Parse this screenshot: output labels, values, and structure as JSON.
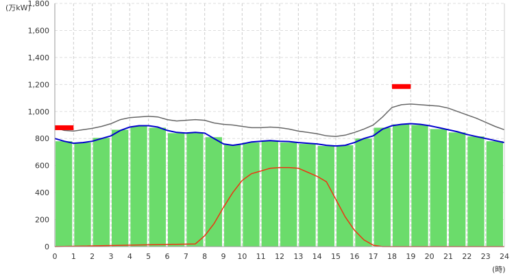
{
  "chart_data": {
    "type": "bar",
    "title": "",
    "ylabel": "(万kW)",
    "xlabel": "(時)",
    "ylim": [
      0,
      1800
    ],
    "xlim": [
      0,
      24
    ],
    "y_ticks": [
      "0",
      "200",
      "400",
      "600",
      "800",
      "1,000",
      "1,200",
      "1,400",
      "1,600",
      "1,800"
    ],
    "x_ticks": [
      "0",
      "1",
      "2",
      "3",
      "4",
      "5",
      "6",
      "7",
      "8",
      "9",
      "10",
      "11",
      "12",
      "13",
      "14",
      "15",
      "16",
      "17",
      "18",
      "19",
      "20",
      "21",
      "22",
      "23",
      "24"
    ],
    "grid": true,
    "categories": [
      0,
      1,
      2,
      3,
      4,
      5,
      6,
      7,
      8,
      9,
      10,
      11,
      12,
      13,
      14,
      15,
      16,
      17,
      18,
      19,
      20,
      21,
      22,
      23
    ],
    "bars": [
      780,
      770,
      805,
      865,
      890,
      880,
      840,
      840,
      810,
      755,
      770,
      785,
      770,
      760,
      745,
      750,
      800,
      880,
      905,
      900,
      870,
      845,
      815,
      780
    ],
    "bar_color": "#6bdc6b",
    "series": [
      {
        "color": "#0000cc",
        "x": [
          0,
          0.5,
          1,
          1.5,
          2,
          2.5,
          3,
          3.5,
          4,
          4.5,
          5,
          5.5,
          6,
          6.5,
          7,
          7.5,
          8,
          8.5,
          9,
          9.5,
          10,
          10.5,
          11,
          11.5,
          12,
          12.5,
          13,
          13.5,
          14,
          14.5,
          15,
          15.5,
          16,
          16.5,
          17,
          17.5,
          18,
          18.5,
          19,
          19.5,
          20,
          20.5,
          21,
          21.5,
          22,
          22.5,
          23,
          23.5,
          24
        ],
        "y": [
          800,
          780,
          765,
          770,
          780,
          800,
          820,
          860,
          885,
          895,
          895,
          885,
          860,
          845,
          840,
          845,
          840,
          800,
          760,
          750,
          760,
          775,
          780,
          785,
          780,
          778,
          770,
          765,
          760,
          750,
          745,
          750,
          770,
          800,
          820,
          870,
          895,
          905,
          910,
          905,
          895,
          880,
          865,
          850,
          830,
          815,
          800,
          785,
          770
        ]
      },
      {
        "color": "#666666",
        "x": [
          0,
          0.5,
          1,
          1.5,
          2,
          2.5,
          3,
          3.5,
          4,
          4.5,
          5,
          5.5,
          6,
          6.5,
          7,
          7.5,
          8,
          8.5,
          9,
          9.5,
          10,
          10.5,
          11,
          11.5,
          12,
          12.5,
          13,
          13.5,
          14,
          14.5,
          15,
          15.5,
          16,
          16.5,
          17,
          17.5,
          18,
          18.5,
          19,
          19.5,
          20,
          20.5,
          21,
          21.5,
          22,
          22.5,
          23,
          23.5,
          24
        ],
        "y": [
          880,
          860,
          855,
          865,
          875,
          890,
          910,
          940,
          955,
          960,
          965,
          960,
          940,
          930,
          935,
          940,
          935,
          915,
          905,
          900,
          890,
          880,
          880,
          885,
          880,
          870,
          855,
          845,
          835,
          820,
          815,
          825,
          845,
          870,
          900,
          960,
          1030,
          1050,
          1055,
          1050,
          1045,
          1040,
          1025,
          1000,
          975,
          950,
          920,
          890,
          865
        ]
      },
      {
        "color": "#ee3311",
        "x": [
          0,
          7.5,
          8,
          8.5,
          9,
          9.5,
          10,
          10.5,
          11,
          11.5,
          12,
          12.5,
          13,
          13.5,
          14,
          14.5,
          15,
          15.5,
          16,
          16.5,
          17,
          17.5,
          24
        ],
        "y": [
          0,
          20,
          80,
          170,
          290,
          400,
          490,
          540,
          560,
          580,
          585,
          585,
          580,
          550,
          520,
          480,
          350,
          220,
          120,
          50,
          10,
          0,
          0
        ]
      }
    ],
    "markers": [
      {
        "x_start": 0,
        "x_end": 1,
        "y": 880,
        "color": "#ff0000"
      },
      {
        "x_start": 18,
        "x_end": 19,
        "y": 1185,
        "color": "#ff0000"
      }
    ]
  }
}
